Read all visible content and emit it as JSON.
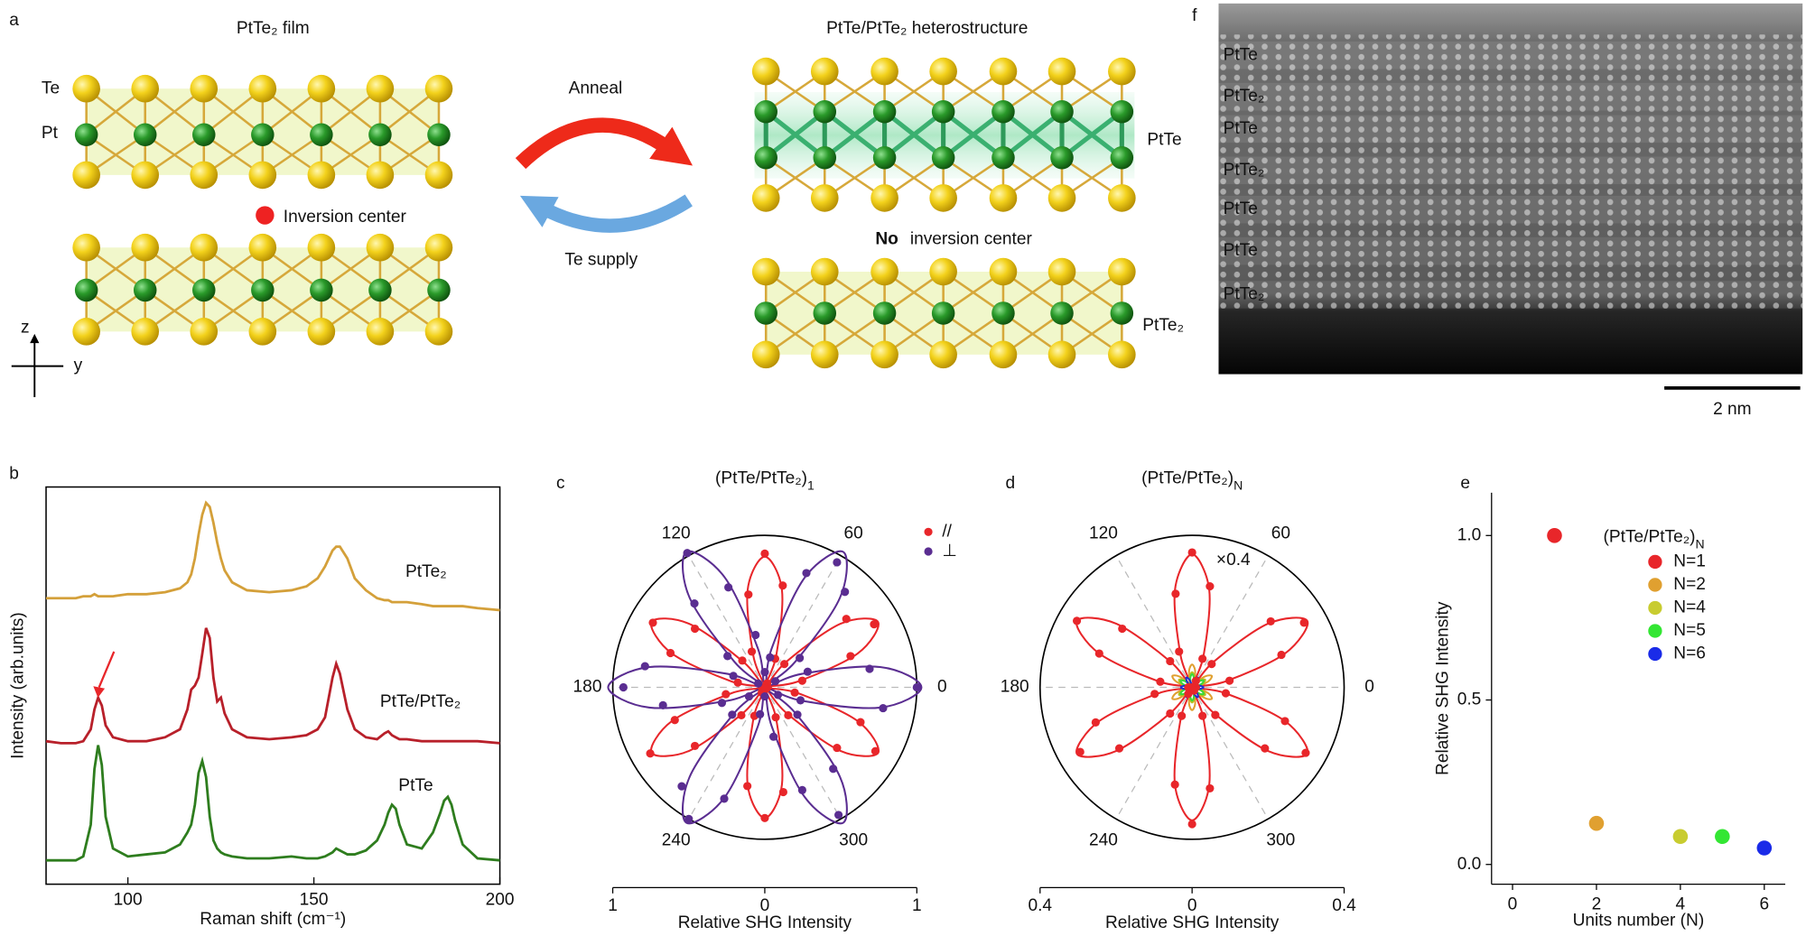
{
  "panel_labels": [
    "a",
    "b",
    "c",
    "d",
    "e",
    "f"
  ],
  "schematic": {
    "left_title": "PtTe₂ film",
    "right_title": "PtTe/PtTe₂ heterostructure",
    "atom_labels": [
      "Te",
      "Pt"
    ],
    "inversion_center": "Inversion center",
    "anneal": "Anneal",
    "te_supply": "Te supply",
    "no_inversion_bold": "No",
    "no_inversion_rest": "inversion center",
    "layer_labels": [
      "PtTe",
      "PtTe₂"
    ],
    "axes": [
      "z",
      "y"
    ]
  },
  "stem_image": {
    "layers": [
      {
        "name": "PtTe",
        "color": "#3cf03c"
      },
      {
        "name": "PtTe₂",
        "color": "#f0f040"
      },
      {
        "name": "PtTe",
        "color": "#3cf03c"
      },
      {
        "name": "PtTe₂",
        "color": "#f0f040"
      },
      {
        "name": "PtTe",
        "color": "#3cf03c"
      },
      {
        "name": "PtTe",
        "color": "#3cf03c"
      },
      {
        "name": "PtTe₂",
        "color": "#f0f040"
      }
    ],
    "scale_bar": "2 nm"
  },
  "chart_data": [
    {
      "type": "line",
      "xlabel": "Raman shift (cm⁻¹)",
      "ylabel": "Intensity (arb.units)",
      "x": [
        78,
        82,
        86,
        88,
        90,
        91,
        92,
        93,
        94,
        96,
        100,
        105,
        110,
        114,
        116,
        117,
        118,
        119,
        120,
        121,
        122,
        123,
        124,
        125,
        126,
        128,
        132,
        138,
        144,
        148,
        151,
        153,
        155,
        156,
        157,
        159,
        161,
        164,
        167,
        169,
        170,
        171,
        172,
        173,
        175,
        179,
        182,
        184,
        185,
        186,
        187,
        188,
        190,
        194,
        200
      ],
      "series": [
        {
          "name": "PtTe₂",
          "color": "#d4a03a",
          "values": [
            0.72,
            0.72,
            0.72,
            0.725,
            0.725,
            0.73,
            0.725,
            0.725,
            0.725,
            0.725,
            0.73,
            0.73,
            0.735,
            0.745,
            0.76,
            0.78,
            0.82,
            0.88,
            0.93,
            0.96,
            0.95,
            0.91,
            0.86,
            0.82,
            0.79,
            0.76,
            0.74,
            0.735,
            0.74,
            0.75,
            0.77,
            0.8,
            0.84,
            0.85,
            0.85,
            0.82,
            0.77,
            0.74,
            0.72,
            0.715,
            0.715,
            0.71,
            0.71,
            0.71,
            0.71,
            0.705,
            0.7,
            0.7,
            0.7,
            0.7,
            0.7,
            0.7,
            0.7,
            0.695,
            0.69
          ]
        },
        {
          "name": "PtTe/PtTe₂",
          "color": "#b8202a",
          "values": [
            0.36,
            0.355,
            0.355,
            0.36,
            0.39,
            0.44,
            0.47,
            0.45,
            0.4,
            0.37,
            0.36,
            0.36,
            0.37,
            0.39,
            0.44,
            0.49,
            0.5,
            0.52,
            0.58,
            0.645,
            0.62,
            0.52,
            0.46,
            0.47,
            0.43,
            0.39,
            0.37,
            0.365,
            0.37,
            0.375,
            0.39,
            0.42,
            0.52,
            0.555,
            0.53,
            0.44,
            0.39,
            0.37,
            0.365,
            0.38,
            0.385,
            0.375,
            0.37,
            0.365,
            0.365,
            0.36,
            0.36,
            0.36,
            0.36,
            0.36,
            0.36,
            0.36,
            0.36,
            0.36,
            0.355
          ]
        },
        {
          "name": "PtTe",
          "color": "#2e7d1e",
          "values": [
            0.06,
            0.06,
            0.06,
            0.07,
            0.15,
            0.29,
            0.35,
            0.3,
            0.17,
            0.09,
            0.07,
            0.075,
            0.08,
            0.1,
            0.13,
            0.15,
            0.2,
            0.28,
            0.31,
            0.27,
            0.17,
            0.11,
            0.09,
            0.08,
            0.075,
            0.07,
            0.065,
            0.065,
            0.07,
            0.065,
            0.065,
            0.07,
            0.08,
            0.09,
            0.085,
            0.075,
            0.075,
            0.085,
            0.11,
            0.15,
            0.18,
            0.2,
            0.19,
            0.15,
            0.1,
            0.09,
            0.13,
            0.18,
            0.21,
            0.22,
            0.2,
            0.16,
            0.1,
            0.065,
            0.06
          ]
        }
      ],
      "xlim": [
        78,
        200
      ],
      "ylim": [
        0,
        1
      ],
      "xticks": [
        100,
        150,
        200
      ]
    },
    {
      "type": "polar",
      "title": {
        "text": "(PtTe/PtTe₂)",
        "subscript": "1"
      },
      "xlabel": "Relative SHG Intensity",
      "angle_ticks": [
        0,
        60,
        120,
        180,
        240,
        300
      ],
      "rlim": [
        0,
        1
      ],
      "xlim": [
        -1,
        1
      ],
      "xticks": [
        {
          "value": -1,
          "label": "1"
        },
        0,
        1
      ],
      "theta": [
        0,
        10,
        20,
        30,
        40,
        50,
        60,
        70,
        80,
        90,
        100,
        110,
        120,
        130,
        140,
        150,
        160,
        170,
        180,
        190,
        200,
        210,
        220,
        230,
        240,
        250,
        260,
        270,
        280,
        290,
        300,
        310,
        320,
        330,
        340,
        350
      ],
      "series": [
        {
          "name": "//",
          "color": "#e8262a",
          "style": "dots",
          "values": [
            0.02,
            0.25,
            0.6,
            0.83,
            0.7,
            0.2,
            0.03,
            0.2,
            0.68,
            0.88,
            0.62,
            0.25,
            0,
            0.23,
            0.6,
            0.85,
            0.66,
            0.18,
            0.02,
            0.26,
            0.63,
            0.87,
            0.6,
            0.24,
            0.04,
            0.2,
            0.66,
            0.86,
            0.7,
            0.21,
            0.01,
            0.24,
            0.62,
            0.84,
            0.67,
            0.2
          ]
        },
        {
          "name": "⊥",
          "color": "#5a2d91",
          "style": "dots",
          "values": [
            1.0,
            0.7,
            0.3,
            0.08,
            0.3,
            0.82,
            0.95,
            0.8,
            0.2,
            0.1,
            0.35,
            0.7,
            1.02,
            0.72,
            0.32,
            0.05,
            0.22,
            0.8,
            0.93,
            0.68,
            0.3,
            0.12,
            0.28,
            0.85,
            1.0,
            0.78,
            0.18,
            0.06,
            0.33,
            0.72,
            0.97,
            0.7,
            0.28,
            0.1,
            0.25,
            0.79
          ]
        },
        {
          "color": "#e8262a",
          "style": "line",
          "values": [
            0,
            0.22,
            0.65,
            0.86,
            0.65,
            0.22,
            0,
            0.22,
            0.65,
            0.86,
            0.65,
            0.22,
            0,
            0.22,
            0.65,
            0.86,
            0.65,
            0.22,
            0,
            0.22,
            0.65,
            0.86,
            0.65,
            0.22,
            0,
            0.22,
            0.65,
            0.86,
            0.65,
            0.22,
            0,
            0.22,
            0.65,
            0.86,
            0.65,
            0.22
          ]
        },
        {
          "color": "#5a2d91",
          "style": "line",
          "values": [
            1.03,
            0.77,
            0.26,
            0,
            0.26,
            0.77,
            1.03,
            0.77,
            0.26,
            0,
            0.26,
            0.77,
            1.03,
            0.77,
            0.26,
            0,
            0.26,
            0.77,
            1.03,
            0.77,
            0.26,
            0,
            0.26,
            0.77,
            1.03,
            0.77,
            0.26,
            0,
            0.26,
            0.77,
            1.03,
            0.77,
            0.26,
            0,
            0.26,
            0.77
          ]
        }
      ]
    },
    {
      "type": "polar",
      "title": {
        "text": "(PtTe/PtTe₂)",
        "subscript": "N"
      },
      "xlabel": "Relative SHG Intensity",
      "annotation": "×0.4",
      "angle_ticks": [
        0,
        60,
        120,
        180,
        240,
        300
      ],
      "rlim": [
        0,
        0.4
      ],
      "xlim": [
        -0.4,
        0.4
      ],
      "xticks": [
        {
          "value": -0.4,
          "label": "0.4"
        },
        0,
        0.4
      ],
      "theta": [
        0,
        10,
        20,
        30,
        40,
        50,
        60,
        70,
        80,
        90,
        100,
        110,
        120,
        130,
        140,
        150,
        160,
        170,
        180,
        190,
        200,
        210,
        220,
        230,
        240,
        250,
        260,
        270,
        280,
        290,
        300,
        310,
        320,
        330,
        340,
        350
      ],
      "series": [
        {
          "color": "#e8262a",
          "style": "dots",
          "values": [
            0.01,
            0.1,
            0.25,
            0.34,
            0.27,
            0.08,
            0.02,
            0.08,
            0.27,
            0.355,
            0.25,
            0.1,
            0,
            0.09,
            0.24,
            0.35,
            0.26,
            0.085,
            0.01,
            0.1,
            0.27,
            0.34,
            0.25,
            0.09,
            0.02,
            0.08,
            0.26,
            0.36,
            0.27,
            0.08,
            0.01,
            0.095,
            0.25,
            0.345,
            0.26,
            0.09
          ]
        },
        {
          "color": "#e8262a",
          "style": "line",
          "values": [
            0,
            0.088,
            0.26,
            0.35,
            0.26,
            0.088,
            0,
            0.088,
            0.26,
            0.35,
            0.26,
            0.088,
            0,
            0.088,
            0.26,
            0.35,
            0.26,
            0.088,
            0,
            0.088,
            0.26,
            0.35,
            0.26,
            0.088,
            0,
            0.088,
            0.26,
            0.35,
            0.26,
            0.088,
            0,
            0.088,
            0.26,
            0.35,
            0.26,
            0.088
          ]
        },
        {
          "color": "#e0a030",
          "style": "line",
          "values": [
            0,
            0.015,
            0.045,
            0.06,
            0.045,
            0.015,
            0,
            0.015,
            0.045,
            0.06,
            0.045,
            0.015,
            0,
            0.015,
            0.045,
            0.06,
            0.045,
            0.015,
            0,
            0.015,
            0.045,
            0.06,
            0.045,
            0.015,
            0,
            0.015,
            0.045,
            0.06,
            0.045,
            0.015,
            0,
            0.015,
            0.045,
            0.06,
            0.045,
            0.015
          ]
        },
        {
          "color": "#b8c020",
          "style": "line",
          "values": [
            0,
            0.01,
            0.03,
            0.04,
            0.03,
            0.01,
            0,
            0.01,
            0.03,
            0.04,
            0.03,
            0.01,
            0,
            0.01,
            0.03,
            0.04,
            0.03,
            0.01,
            0,
            0.01,
            0.03,
            0.04,
            0.03,
            0.01,
            0,
            0.01,
            0.03,
            0.04,
            0.03,
            0.01,
            0,
            0.01,
            0.03,
            0.04,
            0.03,
            0.01
          ]
        },
        {
          "color": "#3ad83a",
          "style": "line",
          "values": [
            0,
            0.009,
            0.026,
            0.035,
            0.026,
            0.009,
            0,
            0.009,
            0.026,
            0.035,
            0.026,
            0.009,
            0,
            0.009,
            0.026,
            0.035,
            0.026,
            0.009,
            0,
            0.009,
            0.026,
            0.035,
            0.026,
            0.009,
            0,
            0.009,
            0.026,
            0.035,
            0.026,
            0.009,
            0,
            0.009,
            0.026,
            0.035,
            0.026,
            0.009
          ]
        },
        {
          "color": "#2030d0",
          "style": "line",
          "values": [
            0.03,
            0.022,
            0.008,
            0,
            0.008,
            0.022,
            0.03,
            0.022,
            0.008,
            0,
            0.008,
            0.022,
            0.03,
            0.022,
            0.008,
            0,
            0.008,
            0.022,
            0.03,
            0.022,
            0.008,
            0,
            0.008,
            0.022,
            0.03,
            0.022,
            0.008,
            0,
            0.008,
            0.022,
            0.03,
            0.022,
            0.008,
            0,
            0.008,
            0.022
          ]
        }
      ]
    },
    {
      "type": "scatter",
      "xlabel": "Units number (N)",
      "ylabel": "Relative SHG Intensity",
      "legend_title": {
        "text": "(PtTe/PtTe₂)",
        "subscript": "N"
      },
      "series": [
        {
          "name": "N=1",
          "color": "#e8262a",
          "x": [
            1
          ],
          "values": [
            1.0
          ]
        },
        {
          "name": "N=2",
          "color": "#e0a030",
          "x": [
            2
          ],
          "values": [
            0.125
          ]
        },
        {
          "name": "N=4",
          "color": "#c8cc30",
          "x": [
            4
          ],
          "values": [
            0.085
          ]
        },
        {
          "name": "N=5",
          "color": "#33e633",
          "x": [
            5
          ],
          "values": [
            0.085
          ]
        },
        {
          "name": "N=6",
          "color": "#1a2be8",
          "x": [
            6
          ],
          "values": [
            0.05
          ]
        }
      ],
      "xlim": [
        -0.5,
        6.5
      ],
      "ylim": [
        -0.06,
        1.13
      ],
      "xticks": [
        0,
        2,
        4,
        6
      ],
      "yticks": [
        {
          "value": 0,
          "label": "0.0"
        },
        {
          "value": 0.5,
          "label": "0.5"
        },
        {
          "value": 1,
          "label": "1.0"
        }
      ]
    }
  ]
}
